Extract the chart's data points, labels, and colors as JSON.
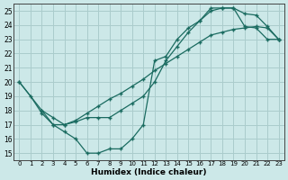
{
  "xlabel": "Humidex (Indice chaleur)",
  "bg_color": "#cce8e8",
  "grid_color": "#aacccc",
  "line_color": "#1a6b60",
  "xlim": [
    -0.5,
    23.5
  ],
  "ylim": [
    14.5,
    25.5
  ],
  "xticks": [
    0,
    1,
    2,
    3,
    4,
    5,
    6,
    7,
    8,
    9,
    10,
    11,
    12,
    13,
    14,
    15,
    16,
    17,
    18,
    19,
    20,
    21,
    22,
    23
  ],
  "yticks": [
    15,
    16,
    17,
    18,
    19,
    20,
    21,
    22,
    23,
    24,
    25
  ],
  "line1_x": [
    0,
    1,
    2,
    3,
    4,
    5,
    6,
    7,
    8,
    9,
    10,
    11,
    12,
    13,
    14,
    15,
    16,
    17,
    18,
    19,
    20,
    21,
    22,
    23
  ],
  "line1_y": [
    20,
    19,
    17.8,
    17,
    16.5,
    16,
    15,
    15,
    15.3,
    15.3,
    16,
    17,
    21.5,
    21.8,
    23.0,
    23.8,
    24.3,
    25.2,
    25.2,
    25.2,
    23.9,
    23.8,
    23.0,
    23.0
  ],
  "line2_x": [
    0,
    2,
    3,
    4,
    5,
    6,
    7,
    8,
    9,
    10,
    11,
    12,
    13,
    14,
    15,
    16,
    17,
    18,
    19,
    20,
    21,
    22,
    23
  ],
  "line2_y": [
    20,
    18,
    17,
    17,
    17.3,
    17.8,
    18.3,
    18.8,
    19.2,
    19.7,
    20.2,
    20.8,
    21.3,
    21.8,
    22.3,
    22.8,
    23.3,
    23.5,
    23.7,
    23.8,
    23.9,
    23.8,
    23.0
  ],
  "line3_x": [
    2,
    3,
    4,
    5,
    6,
    7,
    8,
    9,
    10,
    11,
    12,
    13,
    14,
    15,
    16,
    17,
    18,
    19,
    20,
    21,
    22,
    23
  ],
  "line3_y": [
    18,
    17.5,
    17.0,
    17.2,
    17.5,
    17.5,
    17.5,
    18.0,
    18.5,
    19.0,
    20.0,
    21.5,
    22.5,
    23.5,
    24.3,
    25.0,
    25.2,
    25.2,
    24.8,
    24.7,
    23.9,
    23.0
  ]
}
